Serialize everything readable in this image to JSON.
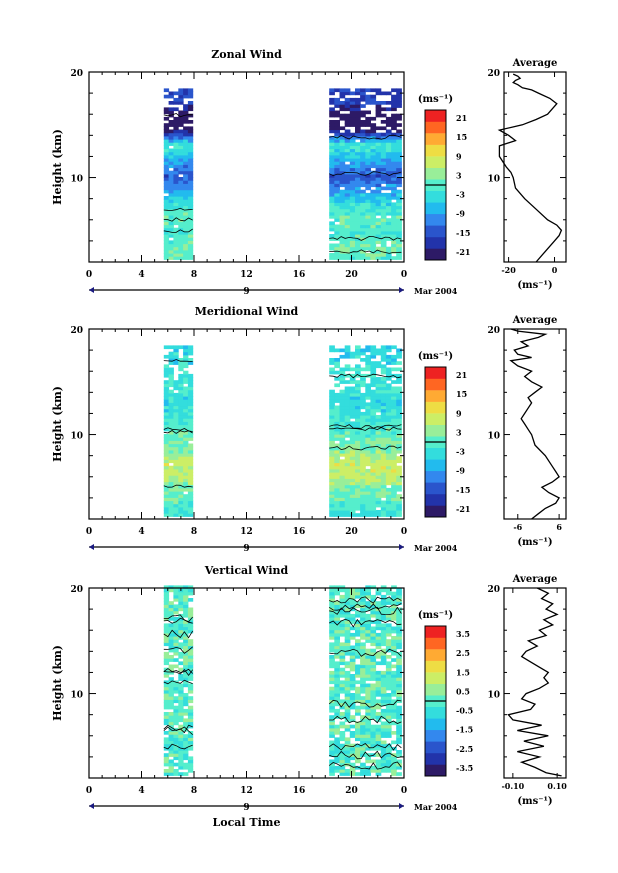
{
  "panels": [
    {
      "title": "Zonal Wind",
      "ylabel": "Height (km)",
      "yticks": [
        "20",
        "10"
      ],
      "xticks": [
        "0",
        "4",
        "8",
        "12",
        "16",
        "20",
        "0"
      ],
      "day_label": "9",
      "month_label": "Mar 2004",
      "colorbar_unit": "(ms⁻¹)",
      "colorbar_ticks": [
        "21",
        "15",
        "9",
        "3",
        "-3",
        "-9",
        "-15",
        "-21"
      ],
      "avg_title": "Average",
      "avg_xticks": [
        "-20",
        "0"
      ],
      "avg_xunit": "(ms⁻¹)",
      "avg_yticks": [
        "20",
        "10"
      ]
    },
    {
      "title": "Meridional Wind",
      "ylabel": "Height (km)",
      "yticks": [
        "20",
        "10"
      ],
      "xticks": [
        "0",
        "4",
        "8",
        "12",
        "16",
        "20",
        "0"
      ],
      "day_label": "9",
      "month_label": "Mar 2004",
      "colorbar_unit": "(ms⁻¹)",
      "colorbar_ticks": [
        "21",
        "15",
        "9",
        "3",
        "-3",
        "-9",
        "-15",
        "-21"
      ],
      "avg_title": "Average",
      "avg_xticks": [
        "-6",
        "6"
      ],
      "avg_xunit": "(ms⁻¹)",
      "avg_yticks": [
        "20",
        "10"
      ]
    },
    {
      "title": "Vertical Wind",
      "ylabel": "Height (km)",
      "yticks": [
        "20",
        "10"
      ],
      "xticks": [
        "0",
        "4",
        "8",
        "12",
        "16",
        "20",
        "0"
      ],
      "day_label": "9",
      "month_label": "Mar 2004",
      "xlabel": "Local Time",
      "colorbar_unit": "(ms⁻¹)",
      "colorbar_ticks": [
        "3.5",
        "2.5",
        "1.5",
        "0.5",
        "-0.5",
        "-1.5",
        "-2.5",
        "-3.5"
      ],
      "avg_title": "Average",
      "avg_xticks": [
        "-0.10",
        "0.10"
      ],
      "avg_xunit": "(ms⁻¹)",
      "avg_yticks": [
        "20",
        "10"
      ]
    }
  ],
  "colors": {
    "scale": [
      "#2d1a66",
      "#2233aa",
      "#2a55cc",
      "#3388ee",
      "#22bbee",
      "#33dddd",
      "#55eecc",
      "#99ee99",
      "#ccee66",
      "#eedd44",
      "#ffaa33",
      "#ff6622",
      "#ee2222"
    ]
  },
  "chart_data": [
    {
      "type": "heatmap",
      "title": "Zonal Wind",
      "ylabel": "Height (km)",
      "ylim": [
        2,
        20
      ],
      "xlim": [
        0,
        24
      ],
      "clim": [
        -21,
        21
      ],
      "observation_windows_local_time": [
        [
          5.7,
          7.9
        ],
        [
          18.3,
          23.8
        ]
      ],
      "height_top_km": [
        [
          18.3
        ],
        [
          18.4
        ]
      ],
      "profile_km": [
        2,
        3,
        4,
        5,
        6,
        7,
        8,
        9,
        10,
        11,
        12,
        13,
        14,
        15,
        16,
        17
      ],
      "profile_ms": [
        -1,
        2,
        0,
        -1,
        1,
        -2,
        -6,
        -10,
        -14,
        -10,
        -5,
        -2,
        -16,
        -26,
        -22,
        -16
      ]
    },
    {
      "type": "line",
      "title": "Average",
      "xlabel": "(ms⁻¹)",
      "ylabel": "",
      "xlim": [
        -22,
        5
      ],
      "ylim": [
        2,
        20
      ],
      "x": [
        -8,
        -4,
        0,
        2,
        3,
        1,
        -3,
        -8,
        -13,
        -17,
        -18,
        -19,
        -21,
        -24,
        -24,
        -17,
        -20,
        -24,
        -14,
        -8,
        -3,
        -1,
        1,
        -2,
        -7,
        -10,
        -14,
        -16,
        -18,
        -17,
        -15,
        -16,
        -18
      ],
      "y": [
        2,
        3,
        4,
        4.5,
        5,
        5.5,
        6,
        7,
        8,
        9,
        10,
        10.5,
        11,
        12,
        13,
        13.5,
        14,
        14.5,
        15,
        15.5,
        16,
        16.5,
        17,
        17.5,
        18,
        18.3,
        18.5,
        18.8,
        19,
        19.2,
        19.4,
        19.6,
        19.8
      ]
    },
    {
      "type": "heatmap",
      "title": "Meridional Wind",
      "ylabel": "Height (km)",
      "ylim": [
        2,
        20
      ],
      "xlim": [
        0,
        24
      ],
      "clim": [
        -21,
        21
      ],
      "observation_windows_local_time": [
        [
          5.7,
          7.9
        ],
        [
          18.3,
          23.8
        ]
      ],
      "profile_km": [
        2,
        3,
        4,
        5,
        6,
        7,
        8,
        9,
        10,
        11,
        12,
        13,
        14,
        15,
        16,
        17
      ],
      "profile_ms": [
        -3,
        -1,
        1,
        3,
        6,
        7,
        4,
        1,
        0,
        -1,
        -3,
        -4,
        -2,
        -3,
        -1,
        -4
      ]
    },
    {
      "type": "line",
      "title": "Average",
      "xlabel": "(ms⁻¹)",
      "ylabel": "",
      "xlim": [
        -10,
        8
      ],
      "ylim": [
        2,
        20
      ],
      "x": [
        -2,
        0,
        2,
        5,
        6,
        3,
        1,
        4,
        6,
        5,
        4,
        2,
        -1,
        -2,
        -3,
        -4,
        -5,
        -4,
        -3,
        -2,
        -3,
        -1,
        1,
        -2,
        -4,
        -2,
        -6,
        -8,
        -2,
        -6,
        -7,
        -3,
        -5,
        0,
        2,
        -6,
        -8
      ],
      "y": [
        2,
        2.5,
        3,
        3.5,
        4,
        4.5,
        5,
        5.5,
        6,
        6.5,
        7,
        8,
        9,
        10,
        10.5,
        11,
        11.5,
        12,
        12.5,
        13,
        13.5,
        14,
        14.5,
        15,
        15.5,
        16,
        16.5,
        17,
        17.3,
        17.6,
        18,
        18.4,
        18.8,
        19.2,
        19.5,
        19.8,
        20
      ]
    },
    {
      "type": "heatmap",
      "title": "Vertical Wind",
      "ylabel": "Height (km)",
      "xlabel": "Local Time",
      "ylim": [
        2,
        20
      ],
      "xlim": [
        0,
        24
      ],
      "clim": [
        -3.5,
        3.5
      ],
      "observation_windows_local_time": [
        [
          5.7,
          7.9
        ],
        [
          18.3,
          23.8
        ]
      ],
      "profile_km": [
        2,
        5,
        8,
        11,
        14,
        17,
        20
      ],
      "profile_ms": [
        0.0,
        -0.2,
        0.1,
        -0.1,
        0.2,
        -0.1,
        0.0
      ]
    },
    {
      "type": "line",
      "title": "Average",
      "xlabel": "(ms⁻¹)",
      "ylabel": "",
      "xlim": [
        -0.14,
        0.14
      ],
      "ylim": [
        2,
        20
      ],
      "x": [
        0.12,
        0.05,
        0.0,
        -0.06,
        0.02,
        -0.08,
        0.04,
        -0.05,
        0.06,
        -0.08,
        0.03,
        -0.1,
        -0.12,
        -0.02,
        0.0,
        -0.06,
        -0.04,
        0.02,
        0.06,
        0.04,
        0.06,
        0.02,
        -0.02,
        -0.06,
        -0.04,
        0.01,
        -0.03,
        0.05,
        0.02,
        0.08,
        0.04,
        0.1,
        0.05,
        0.08,
        0.03,
        0.06,
        0.01
      ],
      "y": [
        2.2,
        2.5,
        3,
        3.5,
        4,
        4.5,
        5,
        5.5,
        6,
        6.5,
        7,
        7.5,
        8,
        8.5,
        9,
        9.5,
        10,
        10.5,
        11,
        11.5,
        12,
        12.5,
        13,
        13.5,
        14,
        14.5,
        15,
        15.5,
        16,
        16.5,
        17,
        17.5,
        18,
        18.5,
        19,
        19.5,
        20
      ]
    }
  ]
}
